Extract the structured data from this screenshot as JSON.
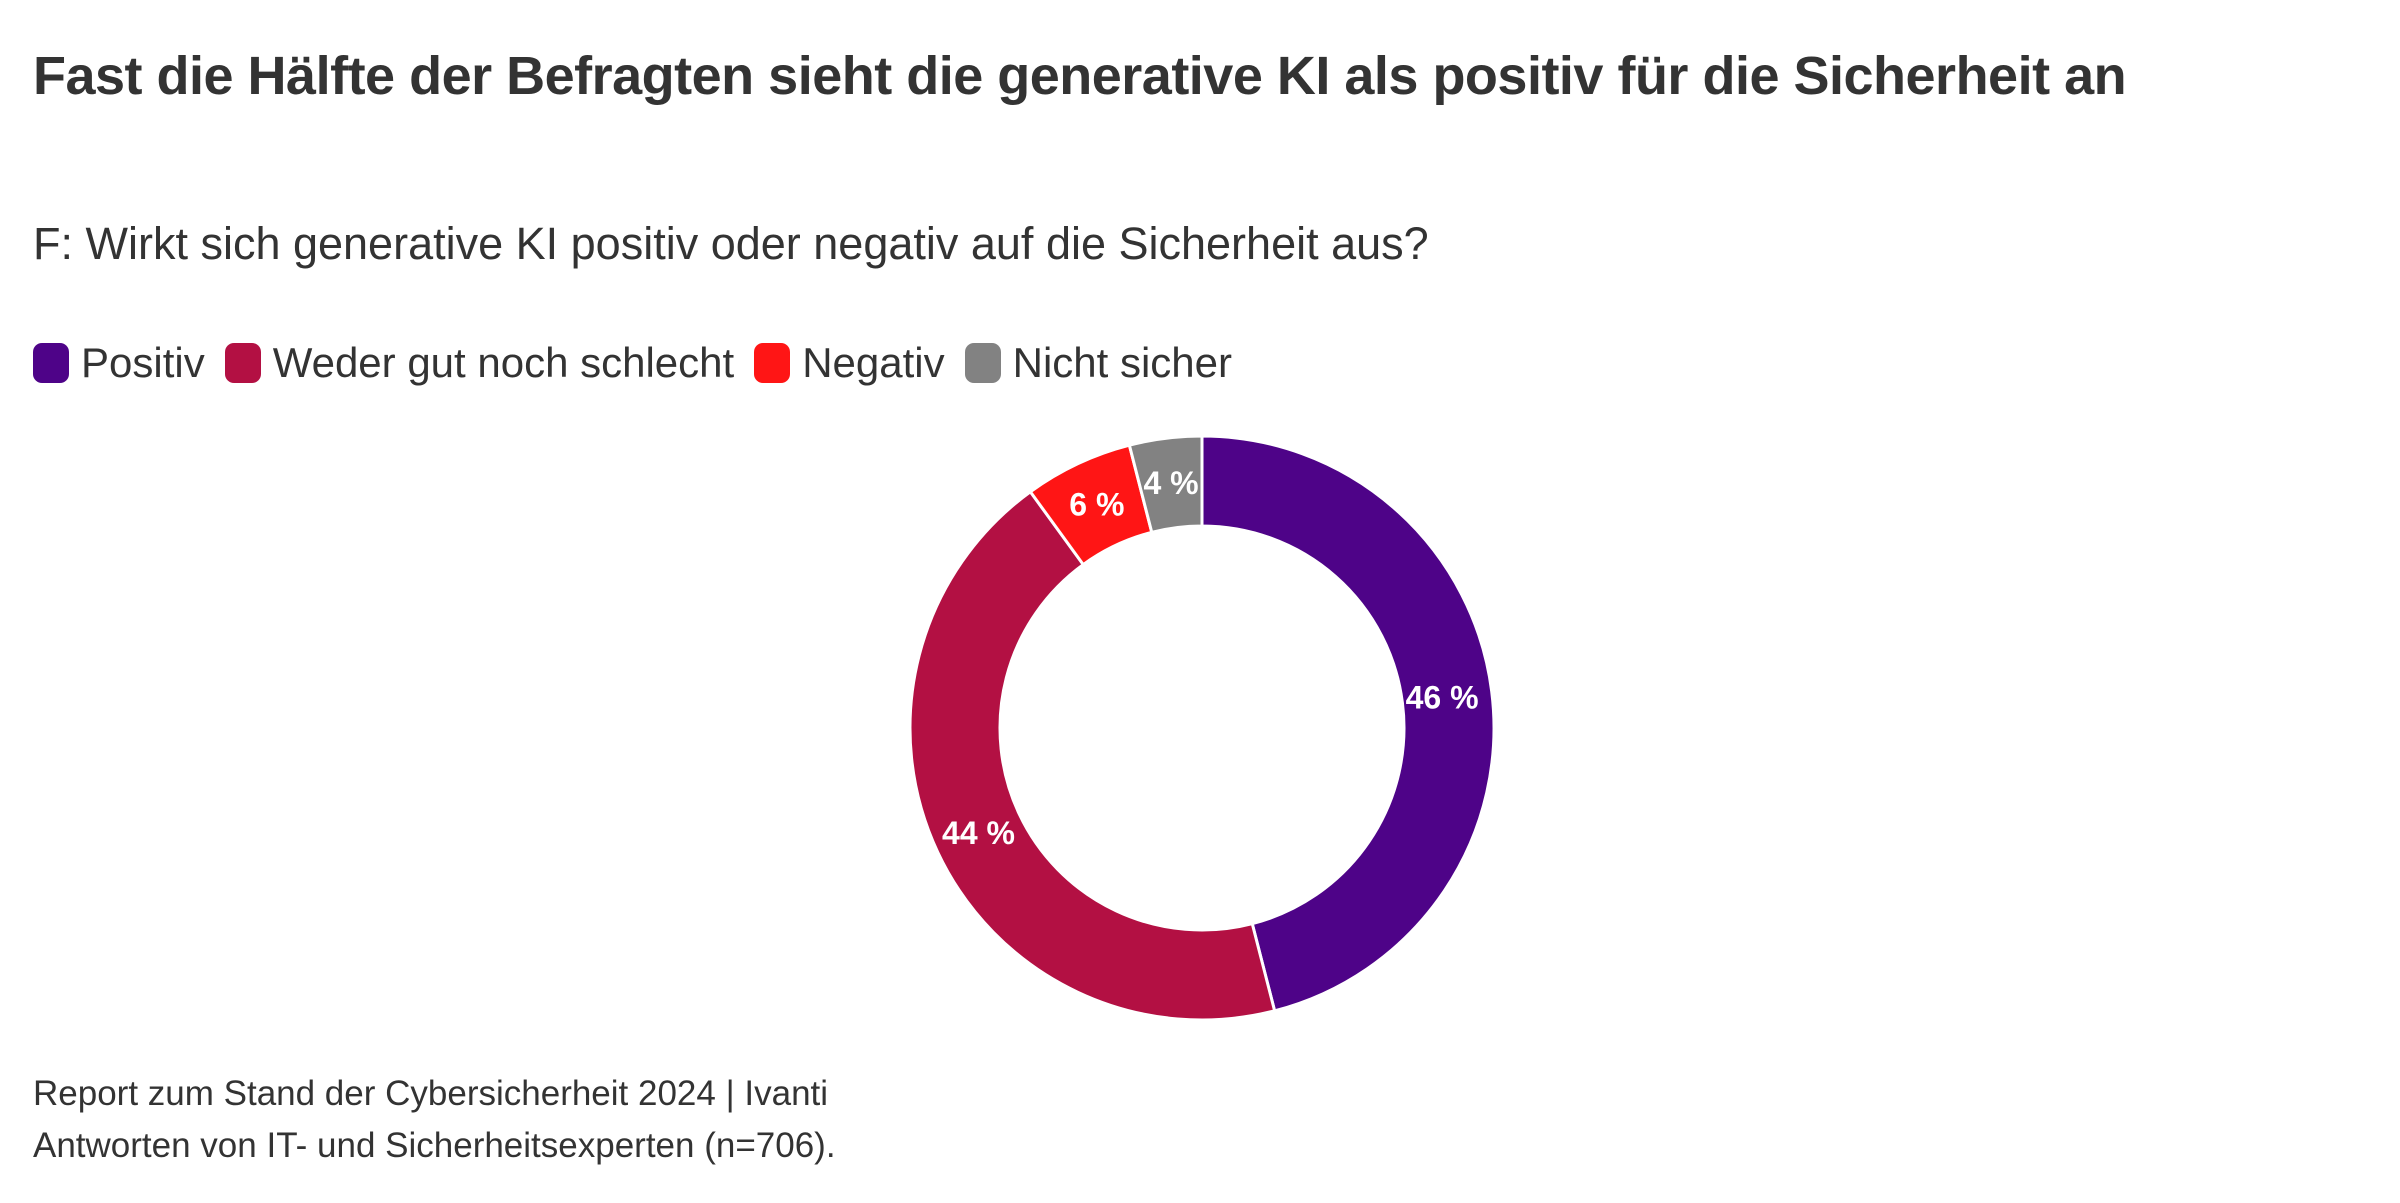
{
  "title": "Fast die Hälfte der Befragten sieht die generative KI als positiv für die Sicherheit an",
  "subtitle": "F: Wirkt sich generative KI positiv oder negativ auf die Sicherheit aus?",
  "legend": [
    {
      "label": "Positiv",
      "color": "#4e0388"
    },
    {
      "label": "Weder gut noch schlecht",
      "color": "#b31043"
    },
    {
      "label": "Negativ",
      "color": "#ff1515"
    },
    {
      "label": "Nicht sicher",
      "color": "#828282"
    }
  ],
  "footer": {
    "source": "Report zum Stand der Cybersicherheit 2024 | Ivanti",
    "note": "Antworten von IT- und Sicherheitsexperten (n=706)."
  },
  "chart_data": {
    "type": "pie",
    "variant": "donut",
    "title": "Fast die Hälfte der Befragten sieht die generative KI als positiv für die Sicherheit an",
    "subtitle": "F: Wirkt sich generative KI positiv oder negativ auf die Sicherheit aus?",
    "unit": "%",
    "legend_position": "top-left",
    "categories": [
      "Positiv",
      "Weder gut noch schlecht",
      "Negativ",
      "Nicht sicher"
    ],
    "values": [
      46,
      44,
      6,
      4
    ],
    "labels": [
      "46 %",
      "44 %",
      "6 %",
      "4 %"
    ],
    "colors": [
      "#4e0388",
      "#b31043",
      "#ff1515",
      "#828282"
    ],
    "start": "top",
    "direction": "clockwise"
  }
}
